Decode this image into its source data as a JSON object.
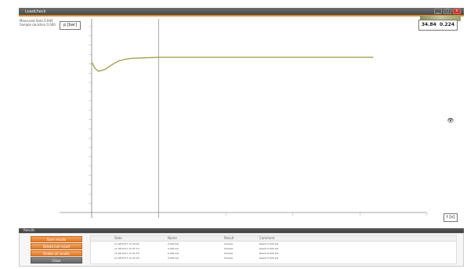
{
  "window": {
    "title": "Loadcheck",
    "controls": [
      "_",
      "□",
      "x"
    ]
  },
  "info": {
    "line1": "Measured data     0.000",
    "line2": "Sample duration   0.000"
  },
  "plot": {
    "unit_label": "p [bar]",
    "readout_x": "34.84",
    "readout_y": "0.224",
    "x_axis_button": "t [s]"
  },
  "bottom_panel": {
    "header_title": "Results",
    "buttons": [
      "Save results",
      "Delete last result",
      "Delete all results",
      "Close"
    ],
    "columns": [
      "Date",
      "Name",
      "Result",
      "Comment"
    ],
    "rows": [
      [
        "11.08.2017  12:30:45",
        "0.000 bar",
        "Sample",
        "Result 0.000 bar"
      ],
      [
        "11.08.2017  12:31:10",
        "0.000 bar",
        "Sample",
        "Result 0.000 bar"
      ],
      [
        "11.08.2017  12:31:52",
        "0.000 bar",
        "Sample",
        "Result 0.000 bar"
      ],
      [
        "11.08.2017  12:32:20",
        "0.000 bar",
        "Sample",
        "Result 0.000 bar"
      ]
    ]
  },
  "chart_data": {
    "type": "line",
    "title": "",
    "xlabel": "",
    "ylabel": "p [bar]",
    "grid": false,
    "yticks": [
      "",
      "",
      "",
      "",
      "",
      "",
      "",
      "",
      "",
      "",
      "",
      "",
      "",
      "",
      "",
      "",
      "",
      "",
      "",
      "",
      ""
    ],
    "xticks": [
      "",
      "",
      "",
      "",
      "",
      ""
    ],
    "xlim": [
      0,
      5
    ],
    "ylim": [
      0,
      20
    ],
    "vertical_markers": [
      0,
      1
    ],
    "series": [
      {
        "color": "#a8a050",
        "x": [
          0,
          0.05,
          0.1,
          0.2,
          0.3,
          0.4,
          0.5,
          0.6,
          0.8,
          1.0,
          1.5,
          2.0,
          3.0,
          4.0,
          4.2
        ],
        "y": [
          16.2,
          15.5,
          15.2,
          15.4,
          15.9,
          16.3,
          16.5,
          16.6,
          16.65,
          16.7,
          16.7,
          16.7,
          16.7,
          16.7,
          16.7
        ]
      }
    ]
  }
}
